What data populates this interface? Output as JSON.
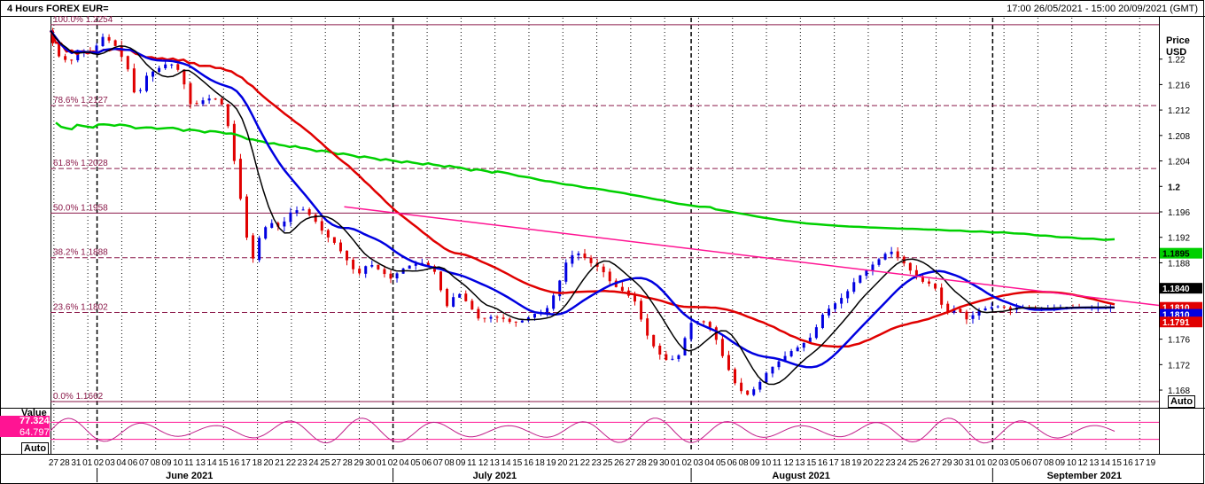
{
  "header": {
    "title": "4 Hours FOREX EUR=",
    "range": "17:00 26/05/2021 - 15:00 20/09/2021 (GMT)"
  },
  "price_axis": {
    "title_line1": "Price",
    "title_line2": "USD",
    "ticks": [
      {
        "v": 1.168,
        "label": "1.168"
      },
      {
        "v": 1.172,
        "label": "1.172"
      },
      {
        "v": 1.176,
        "label": "1.176"
      },
      {
        "v": 1.18,
        "label": "1.18"
      },
      {
        "v": 1.184,
        "label": "1.184"
      },
      {
        "v": 1.188,
        "label": "1.188"
      },
      {
        "v": 1.192,
        "label": "1.192"
      },
      {
        "v": 1.196,
        "label": "1.196"
      },
      {
        "v": 1.2,
        "label": "1.2",
        "bold": true
      },
      {
        "v": 1.204,
        "label": "1.204"
      },
      {
        "v": 1.208,
        "label": "1.208"
      },
      {
        "v": 1.212,
        "label": "1.212"
      },
      {
        "v": 1.216,
        "label": "1.216"
      },
      {
        "v": 1.22,
        "label": "1.22"
      }
    ],
    "auto_label": "Auto"
  },
  "price_tags": [
    {
      "v": 1.1895,
      "label": "1.1895",
      "bg": "#00d000",
      "fg": "#000000"
    },
    {
      "v": 1.184,
      "label": "1.1840",
      "bg": "#000000",
      "fg": "#ffffff"
    },
    {
      "v": 1.181,
      "label": "1.1810",
      "bg": "#e00000",
      "fg": "#ffffff"
    },
    {
      "v": 1.1799,
      "label": "1.1810",
      "bg": "#0000e0",
      "fg": "#ffffff"
    },
    {
      "v": 1.1787,
      "label": "1.1791",
      "bg": "#e00000",
      "fg": "#ffffff"
    }
  ],
  "rsi_panel": {
    "title": "Value",
    "value1": "77.324",
    "value2": "64.797",
    "auto_label": "Auto",
    "bands": [
      70,
      30
    ]
  },
  "x_axis": {
    "day_labels": [
      "27",
      "28",
      "31",
      "01",
      "02",
      "03",
      "04",
      "06",
      "07",
      "08",
      "09",
      "10",
      "11",
      "13",
      "14",
      "15",
      "16",
      "17",
      "18",
      "20",
      "21",
      "22",
      "23",
      "24",
      "25",
      "27",
      "28",
      "29",
      "30",
      "01",
      "02",
      "04",
      "05",
      "06",
      "07",
      "08",
      "09",
      "11",
      "12",
      "13",
      "14",
      "15",
      "16",
      "18",
      "19",
      "20",
      "21",
      "22",
      "23",
      "25",
      "26",
      "27",
      "28",
      "29",
      "30",
      "01",
      "02",
      "03",
      "04",
      "05",
      "06",
      "08",
      "09",
      "10",
      "11",
      "12",
      "13",
      "15",
      "16",
      "17",
      "18",
      "19",
      "20",
      "22",
      "23",
      "24",
      "25",
      "26",
      "27",
      "29",
      "30",
      "31",
      "01",
      "02",
      "03",
      "05",
      "06",
      "07",
      "08",
      "09",
      "10",
      "12",
      "13",
      "14",
      "15",
      "16",
      "17",
      "19"
    ],
    "months": [
      {
        "label": "June 2021",
        "pos": 0.12
      },
      {
        "label": "July 2021",
        "pos": 0.397
      },
      {
        "label": "August 2021",
        "pos": 0.667
      },
      {
        "label": "September 2021",
        "pos": 0.915
      }
    ],
    "month_starts": [
      0.042,
      0.309,
      0.578,
      0.85
    ]
  },
  "chart_data": {
    "type": "line",
    "title": "4 Hours FOREX EUR=",
    "subtitle": "17:00 26/05/2021 - 15:00 20/09/2021 (GMT)",
    "ylabel": "Price USD",
    "ylim": [
      1.1655,
      1.2265
    ],
    "xlim": [
      0,
      1
    ],
    "x_unit": "fraction of the time range (26 May 2021 - 20 Sep 2021)",
    "fibonacci_levels": [
      {
        "label": "100.0%",
        "value": 1.2254,
        "value_label": "1.2254"
      },
      {
        "label": "78.6%",
        "value": 1.2127,
        "value_label": "1.2127"
      },
      {
        "label": "61.8%",
        "value": 1.2028,
        "value_label": "1.2028"
      },
      {
        "label": "50.0%",
        "value": 1.1958,
        "value_label": "1.1958"
      },
      {
        "label": "38.2%",
        "value": 1.1888,
        "value_label": "1.1888"
      },
      {
        "label": "23.6%",
        "value": 1.1802,
        "value_label": "1.1802"
      },
      {
        "label": "0.0%",
        "value": 1.1662,
        "value_label": "1.1662"
      }
    ],
    "price_series": {
      "name": "EUR=",
      "x": [
        0.0,
        0.01,
        0.02,
        0.03,
        0.04,
        0.05,
        0.06,
        0.07,
        0.075,
        0.08,
        0.09,
        0.1,
        0.11,
        0.12,
        0.13,
        0.14,
        0.15,
        0.16,
        0.17,
        0.18,
        0.185,
        0.19,
        0.2,
        0.21,
        0.22,
        0.23,
        0.24,
        0.25,
        0.26,
        0.27,
        0.28,
        0.29,
        0.3,
        0.31,
        0.32,
        0.33,
        0.34,
        0.35,
        0.36,
        0.37,
        0.38,
        0.39,
        0.4,
        0.41,
        0.42,
        0.43,
        0.44,
        0.45,
        0.46,
        0.47,
        0.48,
        0.49,
        0.5,
        0.51,
        0.52,
        0.53,
        0.54,
        0.55,
        0.56,
        0.57,
        0.575,
        0.58,
        0.59,
        0.6,
        0.61,
        0.62,
        0.63,
        0.64,
        0.65,
        0.66,
        0.67,
        0.68,
        0.69,
        0.7,
        0.71,
        0.72,
        0.73,
        0.74,
        0.75,
        0.76,
        0.77,
        0.78,
        0.79,
        0.8,
        0.81,
        0.82,
        0.83,
        0.84,
        0.85,
        0.86,
        0.87,
        0.875,
        0.88,
        0.89,
        0.9,
        0.91,
        0.92,
        0.93,
        0.94,
        0.95,
        0.96
      ],
      "y": [
        1.2245,
        1.2205,
        1.2195,
        1.2215,
        1.221,
        1.2235,
        1.2225,
        1.2195,
        1.2175,
        1.2135,
        1.2175,
        1.2185,
        1.2195,
        1.218,
        1.2125,
        1.2135,
        1.214,
        1.2125,
        1.2028,
        1.192,
        1.1882,
        1.1915,
        1.1945,
        1.1935,
        1.196,
        1.1965,
        1.195,
        1.1925,
        1.191,
        1.1885,
        1.186,
        1.188,
        1.1868,
        1.1855,
        1.187,
        1.1878,
        1.188,
        1.1865,
        1.181,
        1.1835,
        1.1815,
        1.179,
        1.1795,
        1.1793,
        1.1785,
        1.179,
        1.18,
        1.1805,
        1.184,
        1.189,
        1.1895,
        1.188,
        1.187,
        1.1845,
        1.1835,
        1.182,
        1.177,
        1.174,
        1.1725,
        1.1735,
        1.176,
        1.1785,
        1.179,
        1.1775,
        1.173,
        1.1692,
        1.167,
        1.1685,
        1.171,
        1.1725,
        1.174,
        1.175,
        1.1765,
        1.18,
        1.1815,
        1.183,
        1.1855,
        1.187,
        1.1885,
        1.19,
        1.1885,
        1.1865,
        1.185,
        1.1845,
        1.18,
        1.181,
        1.179,
        1.1805,
        1.181,
        1.1812,
        1.1805,
        1.181,
        1.181,
        1.1808,
        1.1809,
        1.181,
        1.1811,
        1.181,
        1.181,
        1.181,
        1.181
      ]
    },
    "series": [
      {
        "color": "#00d000"
      },
      {
        "color": "#e00000"
      },
      {
        "color": "#0000e0"
      },
      {
        "color": "#000000"
      }
    ],
    "trendline": {
      "color": "#ff1493"
    },
    "rsi": {
      "series": [
        {
          "values1": "77.324",
          "values2": "64.797"
        }
      ],
      "ylim": [
        0,
        100
      ]
    }
  }
}
